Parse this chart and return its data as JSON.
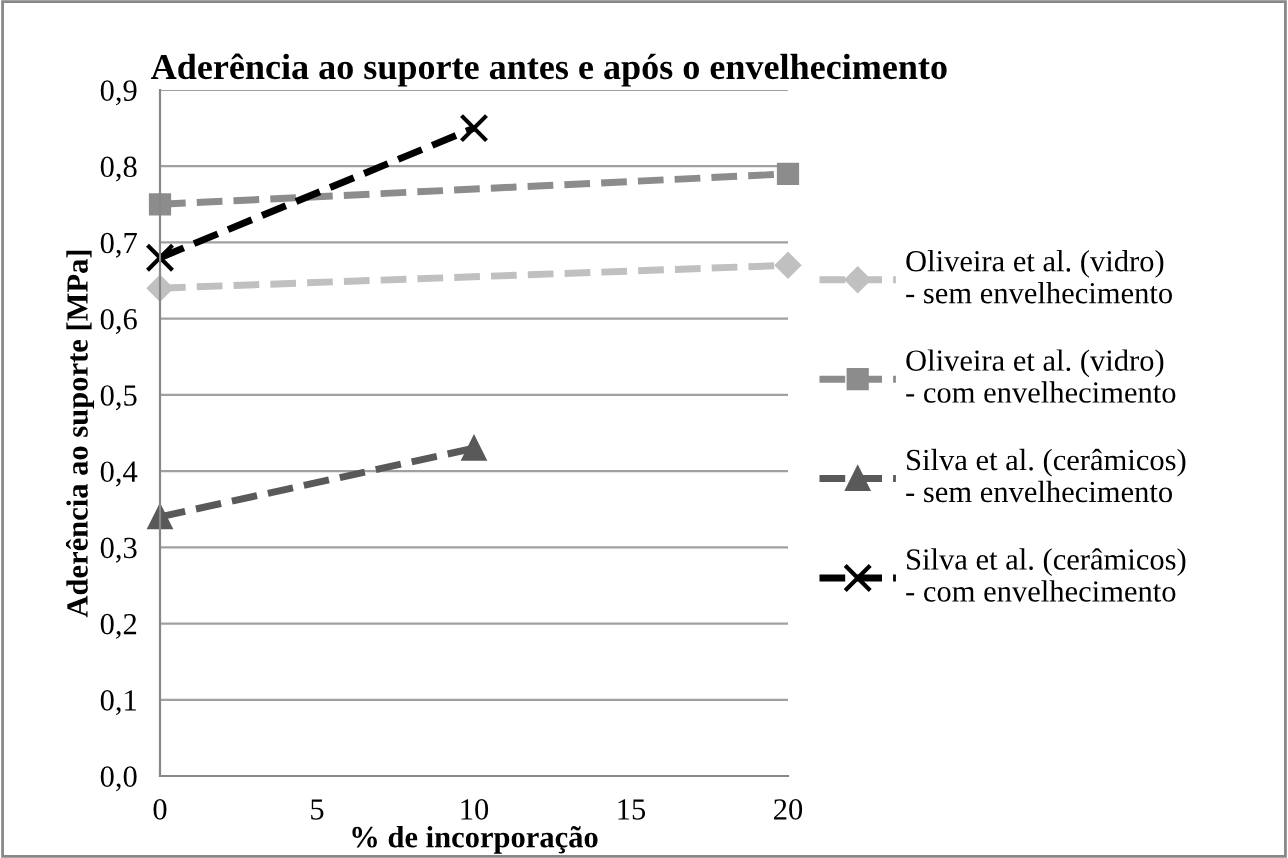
{
  "chart_data": {
    "type": "line",
    "title": "Aderência ao suporte antes e após o envelhecimento",
    "xlabel": "% de incorporação",
    "ylabel": "Aderência ao suporte [MPa]",
    "series": [
      {
        "name": "Oliveira et al. (vidro) - sem envelhecimento",
        "color": "#c0c0c0",
        "marker": "diamond",
        "x": [
          0,
          20
        ],
        "values": [
          0.64,
          0.67
        ]
      },
      {
        "name": "Oliveira et al. (vidro) - com envelhecimento",
        "color": "#8c8c8c",
        "marker": "square",
        "x": [
          0,
          20
        ],
        "values": [
          0.75,
          0.79
        ]
      },
      {
        "name": "Silva et al. (cerâmicos) - sem envelhecimento",
        "color": "#595959",
        "marker": "triangle",
        "x": [
          0,
          10
        ],
        "values": [
          0.34,
          0.43
        ]
      },
      {
        "name": "Silva et al. (cerâmicos) - com envelhecimento",
        "color": "#000000",
        "marker": "cross",
        "x": [
          0,
          10
        ],
        "values": [
          0.68,
          0.85
        ]
      }
    ],
    "line_style": "dashed",
    "xlim": [
      0,
      20
    ],
    "xticks": [
      0,
      5,
      10,
      15,
      20
    ],
    "ylim": [
      0,
      0.9
    ],
    "yticks": [
      {
        "value": 0,
        "label": "0,0"
      },
      {
        "value": 0.1,
        "label": "0,1"
      },
      {
        "value": 0.2,
        "label": "0,2"
      },
      {
        "value": 0.3,
        "label": "0,3"
      },
      {
        "value": 0.4,
        "label": "0,4"
      },
      {
        "value": 0.5,
        "label": "0,5"
      },
      {
        "value": 0.6,
        "label": "0,6"
      },
      {
        "value": 0.7,
        "label": "0,7"
      },
      {
        "value": 0.8,
        "label": "0,8"
      },
      {
        "value": 0.9,
        "label": "0,9"
      }
    ],
    "grid": "y",
    "legend": "right"
  }
}
